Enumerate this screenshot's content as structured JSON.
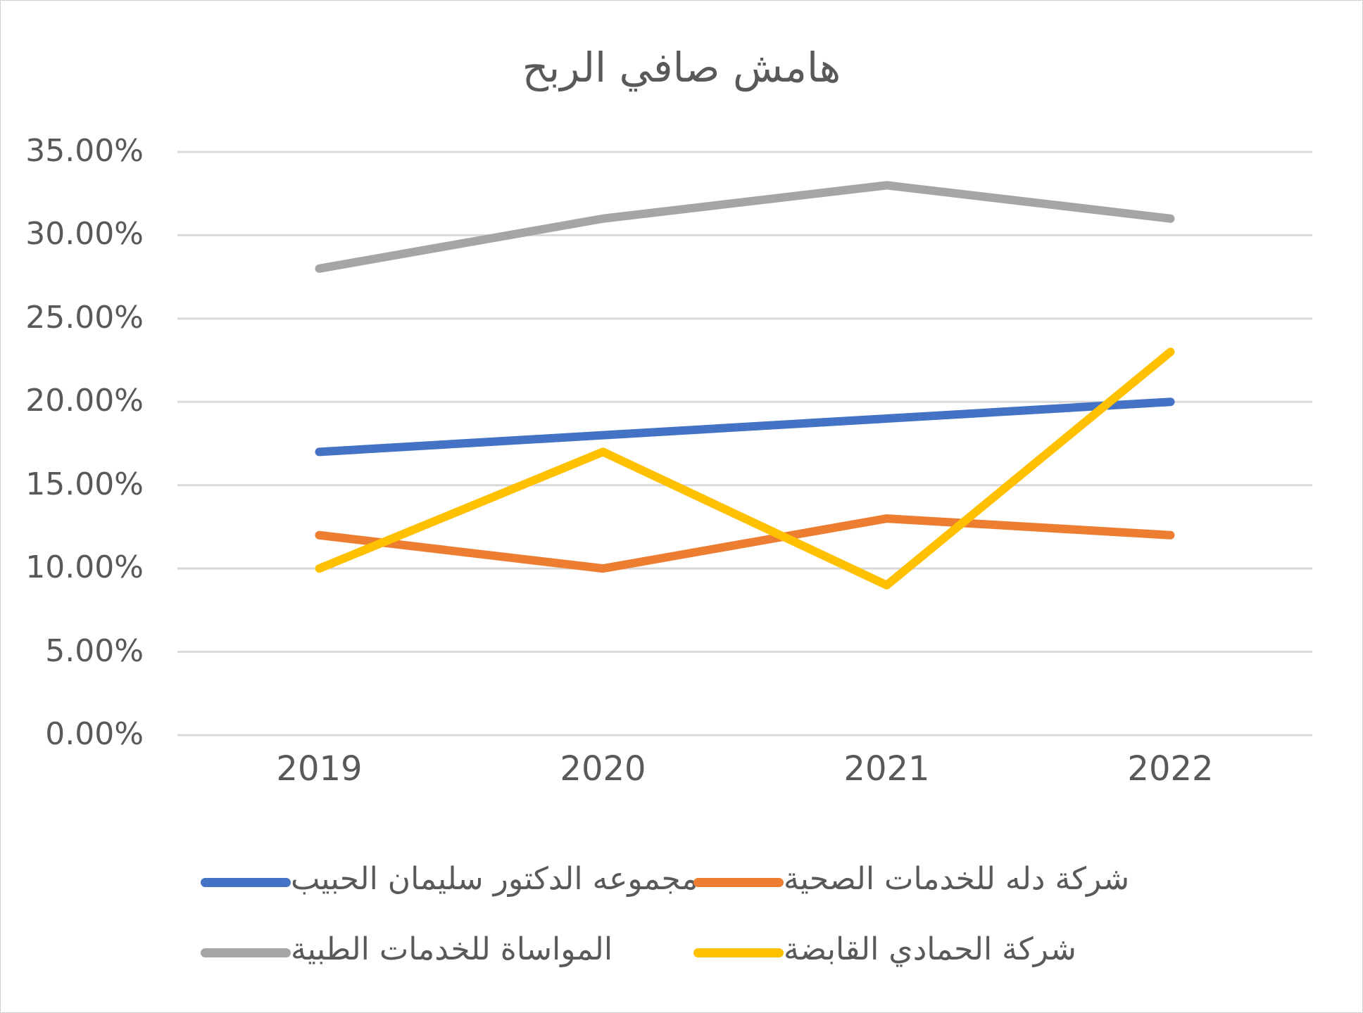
{
  "chart_data": {
    "type": "line",
    "title": "هامش صافي الربح",
    "categories": [
      "2019",
      "2020",
      "2021",
      "2022"
    ],
    "y_ticks": [
      "0.00%",
      "5.00%",
      "10.00%",
      "15.00%",
      "20.00%",
      "25.00%",
      "30.00%",
      "35.00%"
    ],
    "ylim": [
      0,
      0.35
    ],
    "grid": true,
    "legend_position": "bottom",
    "series": [
      {
        "name": "مجموعه الدكتور سليمان الحبيب",
        "color": "#4472C4",
        "values": [
          0.17,
          0.18,
          0.19,
          0.2
        ]
      },
      {
        "name": "شركة دله للخدمات الصحية",
        "color": "#ED7D31",
        "values": [
          0.12,
          0.1,
          0.13,
          0.12
        ]
      },
      {
        "name": "المواساة للخدمات الطبية",
        "color": "#A5A5A5",
        "values": [
          0.28,
          0.31,
          0.33,
          0.31
        ]
      },
      {
        "name": "شركة الحمادي القابضة",
        "color": "#FFC000",
        "values": [
          0.1,
          0.17,
          0.09,
          0.23
        ]
      }
    ]
  }
}
